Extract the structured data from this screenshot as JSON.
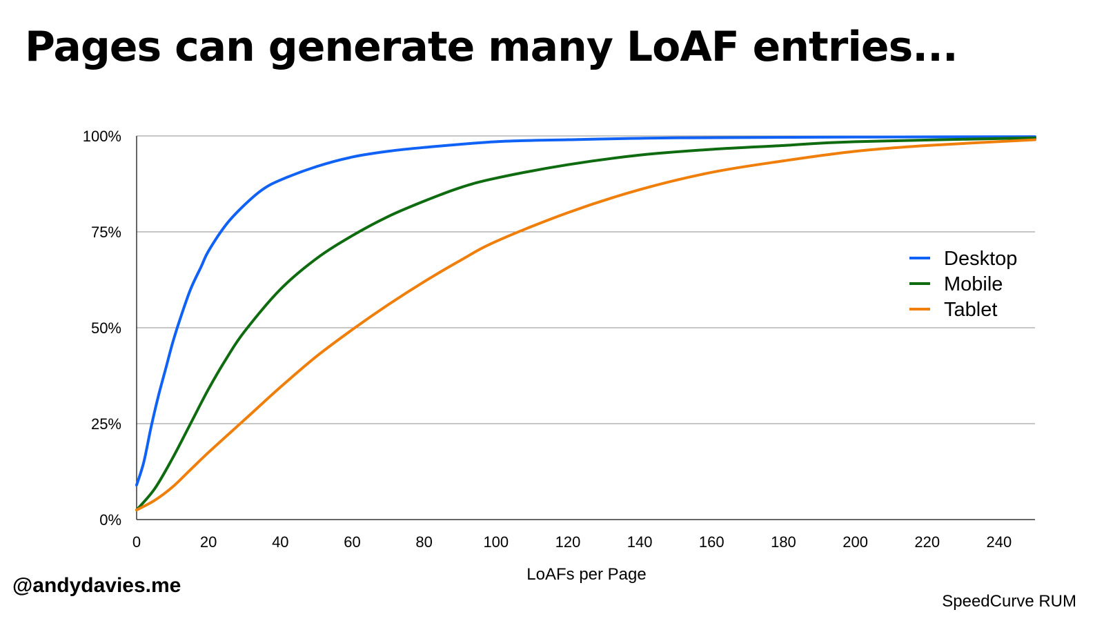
{
  "slide": {
    "title": "Pages can generate many LoAF entries...",
    "handle": "@andydavies.me",
    "source": "SpeedCurve RUM"
  },
  "chart_data": {
    "type": "line",
    "title": "",
    "xlabel": "LoAFs per Page",
    "ylabel": "",
    "xlim": [
      0,
      250
    ],
    "ylim": [
      0,
      100
    ],
    "x_ticks": [
      0,
      20,
      40,
      60,
      80,
      100,
      120,
      140,
      160,
      180,
      200,
      220,
      240
    ],
    "y_ticks": [
      0,
      25,
      50,
      75,
      100
    ],
    "y_tick_labels": [
      "0%",
      "25%",
      "50%",
      "75%",
      "100%"
    ],
    "grid": true,
    "legend_position": "right",
    "series": [
      {
        "name": "Desktop",
        "color": "#0f62f5",
        "x": [
          0,
          2,
          4,
          6,
          8,
          10,
          12,
          15,
          18,
          20,
          25,
          30,
          35,
          40,
          50,
          60,
          70,
          80,
          100,
          120,
          150,
          200,
          250
        ],
        "y": [
          9,
          15,
          24,
          32,
          39,
          46,
          52,
          60,
          66,
          70,
          77,
          82,
          86,
          88.5,
          92,
          94.5,
          96,
          97,
          98.5,
          99,
          99.5,
          99.7,
          99.8
        ]
      },
      {
        "name": "Mobile",
        "color": "#0f6b0f",
        "x": [
          0,
          5,
          10,
          15,
          20,
          25,
          30,
          40,
          50,
          60,
          70,
          80,
          90,
          100,
          120,
          140,
          160,
          180,
          200,
          250
        ],
        "y": [
          2.5,
          8,
          16,
          25,
          34,
          42,
          49,
          60,
          68,
          74,
          79,
          83,
          86.5,
          89,
          92.5,
          95,
          96.5,
          97.5,
          98.5,
          99.5
        ]
      },
      {
        "name": "Tablet",
        "color": "#ef7f0a",
        "x": [
          0,
          5,
          10,
          15,
          20,
          30,
          40,
          50,
          60,
          70,
          80,
          90,
          100,
          120,
          140,
          160,
          180,
          200,
          220,
          250
        ],
        "y": [
          2.5,
          5,
          8.5,
          13,
          17.5,
          26,
          34.5,
          42.5,
          49.5,
          56,
          62,
          67.5,
          72.5,
          80,
          86,
          90.5,
          93.5,
          96,
          97.5,
          99
        ]
      }
    ]
  }
}
